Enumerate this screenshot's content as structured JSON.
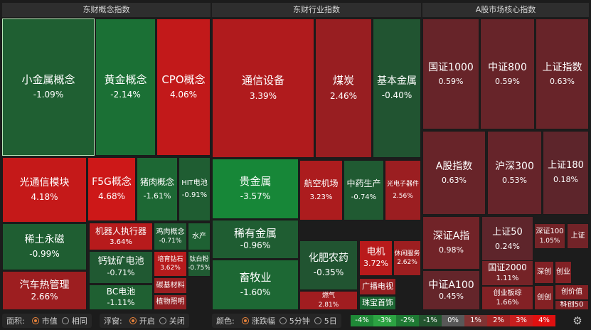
{
  "panels": [
    {
      "title": "东财概念指数"
    },
    {
      "title": "东财行业指数"
    },
    {
      "title": "A股市场核心指数"
    }
  ],
  "chart_data": {
    "type": "treemap",
    "groups": [
      {
        "title": "东财概念指数",
        "items": [
          {
            "name": "小金属概念",
            "change": "-1.09%",
            "value": -1.09
          },
          {
            "name": "黄金概念",
            "change": "-2.14%",
            "value": -2.14
          },
          {
            "name": "CPO概念",
            "change": "4.06%",
            "value": 4.06
          },
          {
            "name": "光通信模块",
            "change": "4.18%",
            "value": 4.18
          },
          {
            "name": "F5G概念",
            "change": "4.68%",
            "value": 4.68
          },
          {
            "name": "猪肉概念",
            "change": "-1.61%",
            "value": -1.61
          },
          {
            "name": "HIT电池",
            "change": "-0.91%",
            "value": -0.91
          },
          {
            "name": "稀土永磁",
            "change": "-0.99%",
            "value": -0.99
          },
          {
            "name": "机器人执行器",
            "change": "3.64%",
            "value": 3.64
          },
          {
            "name": "鸡肉概念",
            "change": "-0.71%",
            "value": -0.71
          },
          {
            "name": "水产",
            "change": "",
            "value": -1.2
          },
          {
            "name": "钙钛矿电池",
            "change": "-0.71%",
            "value": -0.71
          },
          {
            "name": "培育钻石",
            "change": "3.62%",
            "value": 3.62
          },
          {
            "name": "钛白粉",
            "change": "-0.75%",
            "value": -0.75
          },
          {
            "name": "汽车热管理",
            "change": "2.66%",
            "value": 2.66
          },
          {
            "name": "BC电池",
            "change": "-1.11%",
            "value": -1.11
          },
          {
            "name": "碳基材料",
            "change": "",
            "value": 2.5
          },
          {
            "name": "植物照明",
            "change": "",
            "value": 2.2
          }
        ]
      },
      {
        "title": "东财行业指数",
        "items": [
          {
            "name": "通信设备",
            "change": "3.39%",
            "value": 3.39
          },
          {
            "name": "煤炭",
            "change": "2.46%",
            "value": 2.46
          },
          {
            "name": "基本金属",
            "change": "-0.40%",
            "value": -0.4
          },
          {
            "name": "贵金属",
            "change": "-3.57%",
            "value": -3.57
          },
          {
            "name": "航空机场",
            "change": "3.23%",
            "value": 3.23
          },
          {
            "name": "中药生产",
            "change": "-0.74%",
            "value": -0.74
          },
          {
            "name": "光电子器件",
            "change": "2.56%",
            "value": 2.56
          },
          {
            "name": "稀有金属",
            "change": "-0.96%",
            "value": -0.96
          },
          {
            "name": "电机",
            "change": "3.72%",
            "value": 3.72
          },
          {
            "name": "休闲服务",
            "change": "2.62%",
            "value": 2.62
          },
          {
            "name": "化肥农药",
            "change": "-0.35%",
            "value": -0.35
          },
          {
            "name": "畜牧业",
            "change": "-1.60%",
            "value": -1.6
          },
          {
            "name": "燃气",
            "change": "2.81%",
            "value": 2.81
          },
          {
            "name": "广播电视",
            "change": "",
            "value": 2.4
          },
          {
            "name": "珠宝首饰",
            "change": "",
            "value": -1.5
          }
        ]
      },
      {
        "title": "A股市场核心指数",
        "items": [
          {
            "name": "国证1000",
            "change": "0.59%",
            "value": 0.59
          },
          {
            "name": "中证800",
            "change": "0.59%",
            "value": 0.59
          },
          {
            "name": "上证指数",
            "change": "0.63%",
            "value": 0.63
          },
          {
            "name": "A股指数",
            "change": "0.63%",
            "value": 0.63
          },
          {
            "name": "沪深300",
            "change": "0.53%",
            "value": 0.53
          },
          {
            "name": "上证180",
            "change": "0.18%",
            "value": 0.18
          },
          {
            "name": "深证A指",
            "change": "0.98%",
            "value": 0.98
          },
          {
            "name": "上证50",
            "change": "0.24%",
            "value": 0.24
          },
          {
            "name": "深证100",
            "change": "1.05%",
            "value": 1.05
          },
          {
            "name": "上证",
            "change": "",
            "value": 1.0
          },
          {
            "name": "国证2000",
            "change": "1.11%",
            "value": 1.11
          },
          {
            "name": "中证A100",
            "change": "0.45%",
            "value": 0.45
          },
          {
            "name": "深创",
            "change": "",
            "value": 1.6
          },
          {
            "name": "创业",
            "change": "",
            "value": 1.6
          },
          {
            "name": "创业板综",
            "change": "1.66%",
            "value": 1.66
          },
          {
            "name": "创创",
            "change": "",
            "value": 1.7
          },
          {
            "name": "创价值",
            "change": "",
            "value": 1.7
          },
          {
            "name": "科创50",
            "change": "",
            "value": 1.5
          }
        ]
      }
    ],
    "color_scale": [
      "-4%",
      "-3%",
      "-2%",
      "-1%",
      "0%",
      "1%",
      "2%",
      "3%",
      "4%"
    ]
  },
  "footer": {
    "area_label": "面积:",
    "area_options": [
      "市值",
      "相同"
    ],
    "area_selected": 0,
    "float_label": "浮窗:",
    "float_options": [
      "开启",
      "关闭"
    ],
    "float_selected": 0,
    "color_label": "颜色:",
    "color_options": [
      "涨跌幅",
      "5分钟",
      "5日"
    ],
    "color_selected": 0
  },
  "colors": {
    "panel_header_bg": "#2e2e2e",
    "scale": [
      "#1f8a37",
      "#2ca342",
      "#1e7a33",
      "#23552f",
      "#585858",
      "#803333",
      "#a22323",
      "#c81e1e",
      "#e01010"
    ]
  },
  "icons": {
    "settings": "gear-icon"
  }
}
